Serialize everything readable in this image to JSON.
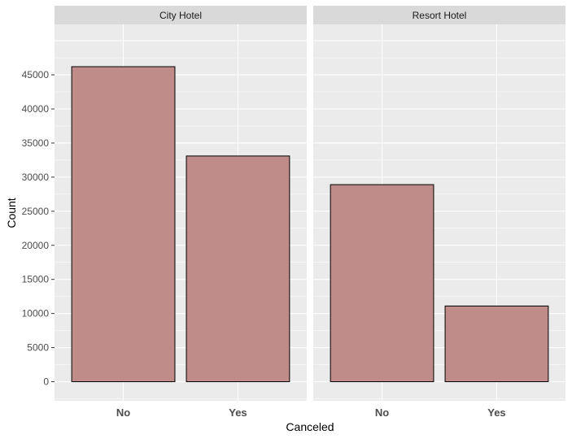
{
  "chart_data": {
    "type": "bar",
    "facets": [
      {
        "label": "City Hotel",
        "categories": [
          "No",
          "Yes"
        ],
        "values": [
          46200,
          33100
        ]
      },
      {
        "label": "Resort Hotel",
        "categories": [
          "No",
          "Yes"
        ],
        "values": [
          28900,
          11100
        ]
      }
    ],
    "xlabel": "Canceled",
    "ylabel": "Count",
    "yticks": [
      0,
      5000,
      10000,
      15000,
      20000,
      25000,
      30000,
      35000,
      40000,
      45000
    ],
    "ylim": [
      -2800,
      52400
    ],
    "grid": true,
    "legend": "none",
    "colors": {
      "bar_fill": "#c08c8a",
      "bar_stroke": "#000000",
      "panel_bg": "#ebebeb",
      "strip_bg": "#d9d9d9",
      "grid": "#ffffff"
    }
  }
}
